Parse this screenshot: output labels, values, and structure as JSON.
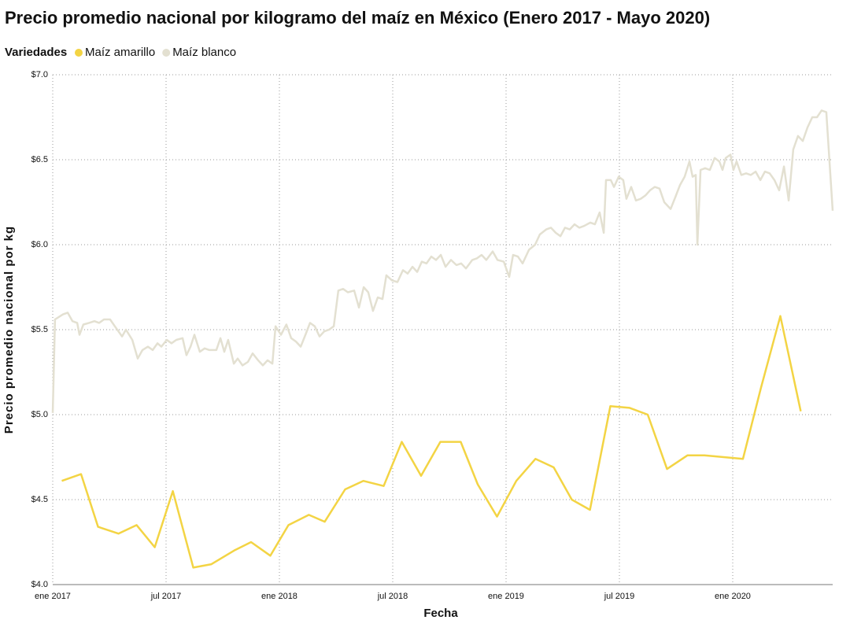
{
  "chart_data": {
    "type": "line",
    "title": "Precio promedio nacional por kilogramo del maíz en México (Enero 2017 - Mayo 2020)",
    "legend_title": "Variedades",
    "x_label": "Fecha",
    "y_label": "Precio promedio nacional por kg",
    "grid": true,
    "xlim": [
      2017,
      2020.441
    ],
    "xticks": [
      {
        "value": 2017,
        "label": "ene 2017"
      },
      {
        "value": 2017.5,
        "label": "jul 2017"
      },
      {
        "value": 2018,
        "label": "ene 2018"
      },
      {
        "value": 2018.5,
        "label": "jul 2018"
      },
      {
        "value": 2019,
        "label": "ene 2019"
      },
      {
        "value": 2019.5,
        "label": "jul 2019"
      },
      {
        "value": 2020,
        "label": "ene 2020"
      }
    ],
    "ylim": [
      4,
      7
    ],
    "yticks": [
      {
        "value": 4,
        "label": "$4.0"
      },
      {
        "value": 4.5,
        "label": "$4.5"
      },
      {
        "value": 5,
        "label": "$5.0"
      },
      {
        "value": 5.5,
        "label": "$5.5"
      },
      {
        "value": 6,
        "label": "$6.0"
      },
      {
        "value": 6.5,
        "label": "$6.5"
      },
      {
        "value": 7,
        "label": "$7.0"
      }
    ],
    "series": [
      {
        "name": "Maíz amarillo",
        "color": "#f3d444",
        "x": [
          2017.04,
          2017.125,
          2017.2,
          2017.29,
          2017.37,
          2017.45,
          2017.53,
          2017.62,
          2017.7,
          2017.8,
          2017.875,
          2017.96,
          2018.04,
          2018.13,
          2018.2,
          2018.29,
          2018.37,
          2018.46,
          2018.54,
          2018.625,
          2018.71,
          2018.8,
          2018.875,
          2018.96,
          2019.045,
          2019.13,
          2019.21,
          2019.29,
          2019.37,
          2019.46,
          2019.545,
          2019.625,
          2019.71,
          2019.8,
          2019.875,
          2019.96,
          2020.045,
          2020.125,
          2020.21,
          2020.3
        ],
        "values": [
          4.61,
          4.65,
          4.34,
          4.3,
          4.35,
          4.22,
          4.55,
          4.1,
          4.12,
          4.2,
          4.25,
          4.17,
          4.35,
          4.41,
          4.37,
          4.56,
          4.61,
          4.58,
          4.84,
          4.64,
          4.84,
          4.84,
          4.59,
          4.4,
          4.61,
          4.74,
          4.69,
          4.5,
          4.44,
          5.05,
          5.04,
          5.0,
          4.68,
          4.76,
          4.76,
          4.75,
          4.74,
          5.16,
          5.58,
          5.02
        ]
      },
      {
        "name": "Maíz blanco",
        "color": "#e3e0d1",
        "x": [
          2017.0,
          2017.01,
          2017.045,
          2017.066,
          2017.087,
          2017.108,
          2017.118,
          2017.135,
          2017.16,
          2017.184,
          2017.205,
          2017.226,
          2017.253,
          2017.274,
          2017.306,
          2017.323,
          2017.351,
          2017.375,
          2017.396,
          2017.42,
          2017.441,
          2017.462,
          2017.479,
          2017.503,
          2017.524,
          2017.545,
          2017.573,
          2017.59,
          2017.608,
          2017.625,
          2017.649,
          2017.67,
          2017.691,
          2017.722,
          2017.74,
          2017.757,
          2017.774,
          2017.799,
          2017.816,
          2017.837,
          2017.861,
          2017.882,
          2017.906,
          2017.927,
          2017.948,
          2017.969,
          2017.983,
          2018.007,
          2018.031,
          2018.052,
          2018.073,
          2018.094,
          2018.115,
          2018.135,
          2018.156,
          2018.177,
          2018.198,
          2018.219,
          2018.24,
          2018.26,
          2018.281,
          2018.302,
          2018.33,
          2018.351,
          2018.372,
          2018.392,
          2018.413,
          2018.434,
          2018.455,
          2018.472,
          2018.497,
          2018.521,
          2018.545,
          2018.566,
          2018.587,
          2018.608,
          2018.628,
          2018.649,
          2018.67,
          2018.691,
          2018.712,
          2018.733,
          2018.757,
          2018.781,
          2018.802,
          2018.823,
          2018.851,
          2018.872,
          2018.892,
          2018.913,
          2018.941,
          2018.962,
          2018.99,
          2019.014,
          2019.031,
          2019.052,
          2019.073,
          2019.101,
          2019.128,
          2019.149,
          2019.177,
          2019.198,
          2019.219,
          2019.24,
          2019.26,
          2019.281,
          2019.302,
          2019.323,
          2019.344,
          2019.372,
          2019.392,
          2019.413,
          2019.431,
          2019.441,
          2019.462,
          2019.476,
          2019.497,
          2019.517,
          2019.531,
          2019.552,
          2019.573,
          2019.594,
          2019.615,
          2019.635,
          2019.656,
          2019.677,
          2019.698,
          2019.726,
          2019.747,
          2019.767,
          2019.788,
          2019.809,
          2019.823,
          2019.837,
          2019.844,
          2019.858,
          2019.878,
          2019.899,
          2019.92,
          2019.941,
          2019.955,
          2019.969,
          2019.99,
          2020.003,
          2020.017,
          2020.038,
          2020.059,
          2020.08,
          2020.101,
          2020.122,
          2020.142,
          2020.163,
          2020.184,
          2020.205,
          2020.226,
          2020.247,
          2020.267,
          2020.288,
          2020.309,
          2020.33,
          2020.351,
          2020.372,
          2020.392,
          2020.413,
          2020.441
        ],
        "values": [
          5.01,
          5.56,
          5.59,
          5.6,
          5.55,
          5.54,
          5.47,
          5.53,
          5.54,
          5.55,
          5.54,
          5.56,
          5.56,
          5.52,
          5.46,
          5.5,
          5.44,
          5.33,
          5.38,
          5.4,
          5.38,
          5.42,
          5.4,
          5.44,
          5.42,
          5.44,
          5.45,
          5.35,
          5.4,
          5.47,
          5.37,
          5.39,
          5.38,
          5.38,
          5.45,
          5.37,
          5.44,
          5.3,
          5.33,
          5.29,
          5.31,
          5.36,
          5.32,
          5.29,
          5.32,
          5.3,
          5.52,
          5.47,
          5.53,
          5.45,
          5.43,
          5.4,
          5.47,
          5.54,
          5.52,
          5.46,
          5.49,
          5.5,
          5.52,
          5.73,
          5.74,
          5.72,
          5.73,
          5.63,
          5.75,
          5.72,
          5.61,
          5.69,
          5.68,
          5.82,
          5.79,
          5.78,
          5.85,
          5.83,
          5.87,
          5.84,
          5.9,
          5.89,
          5.93,
          5.91,
          5.94,
          5.87,
          5.91,
          5.88,
          5.89,
          5.86,
          5.91,
          5.92,
          5.94,
          5.91,
          5.96,
          5.91,
          5.9,
          5.81,
          5.94,
          5.93,
          5.89,
          5.97,
          6.0,
          6.06,
          6.09,
          6.1,
          6.07,
          6.05,
          6.1,
          6.09,
          6.12,
          6.1,
          6.11,
          6.13,
          6.12,
          6.19,
          6.07,
          6.38,
          6.38,
          6.34,
          6.4,
          6.38,
          6.27,
          6.34,
          6.26,
          6.27,
          6.29,
          6.32,
          6.34,
          6.33,
          6.25,
          6.21,
          6.28,
          6.35,
          6.4,
          6.49,
          6.4,
          6.41,
          6.0,
          6.44,
          6.45,
          6.44,
          6.51,
          6.49,
          6.44,
          6.51,
          6.53,
          6.44,
          6.49,
          6.41,
          6.42,
          6.41,
          6.43,
          6.38,
          6.43,
          6.42,
          6.38,
          6.32,
          6.46,
          6.26,
          6.56,
          6.64,
          6.61,
          6.69,
          6.75,
          6.75,
          6.79,
          6.78,
          6.2
        ]
      }
    ]
  }
}
